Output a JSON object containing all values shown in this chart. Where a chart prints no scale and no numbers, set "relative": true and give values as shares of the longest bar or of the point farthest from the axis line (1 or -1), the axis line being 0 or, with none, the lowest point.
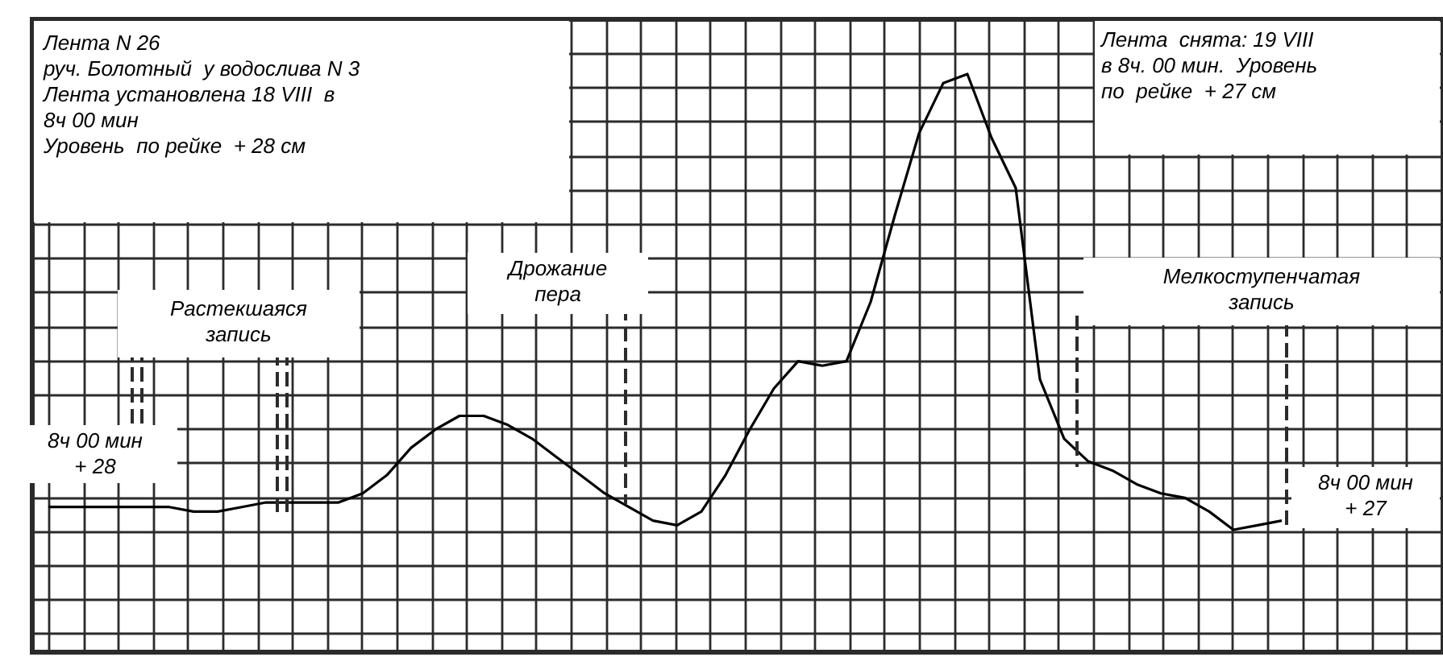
{
  "chart_data": {
    "type": "line",
    "relative": true,
    "grid": true,
    "categories": [
      null,
      null,
      null,
      null,
      null,
      null,
      null,
      null,
      null,
      null,
      null,
      null,
      null,
      null,
      null,
      null,
      null,
      null,
      null,
      null,
      null,
      null,
      null,
      null,
      null,
      null,
      null,
      null,
      null,
      null,
      null,
      null,
      null,
      null,
      null,
      null,
      null,
      null,
      null,
      null,
      null,
      null,
      null,
      null,
      null,
      null,
      null,
      null,
      null,
      null,
      null,
      null
    ],
    "series": [
      {
        "color": "#000000",
        "values": [
          0.05,
          0.05,
          0.05,
          0.05,
          0.05,
          0.05,
          0.04,
          0.04,
          0.05,
          0.06,
          0.06,
          0.06,
          0.06,
          0.08,
          0.12,
          0.18,
          0.22,
          0.25,
          0.25,
          0.23,
          0.2,
          0.16,
          0.12,
          0.08,
          0.05,
          0.02,
          0.01,
          0.04,
          0.12,
          0.22,
          0.31,
          0.37,
          0.36,
          0.37,
          0.5,
          0.69,
          0.87,
          0.98,
          1.0,
          0.86,
          0.75,
          0.33,
          0.2,
          0.15,
          0.13,
          0.1,
          0.08,
          0.07,
          0.04,
          0.0,
          0.01,
          0.02
        ]
      }
    ],
    "annotations": [
      "Лента N 26\nруч. Болотный  у водослива N 3\nЛента установлена 18 VIII  в\n8ч 00 мин\nУровень  по рейке  + 28 см",
      "Лента  снята: 19 VIII\nв 8ч. 00 мин.  Уровень\nпо  рейке  + 27 см",
      "Растекшаяся\nзапись",
      "Дрожание\nпера",
      "Мелкоступенчатая\nзапись",
      "8ч 00 мин\n+ 28",
      "8ч 00 мин\n+ 27"
    ]
  }
}
